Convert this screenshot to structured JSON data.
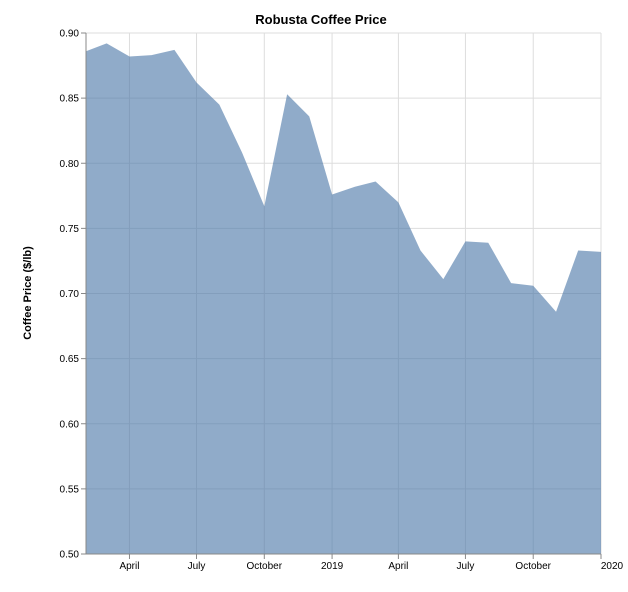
{
  "chart_data": {
    "type": "area",
    "title": "Robusta Coffee Price",
    "xlabel": "",
    "ylabel": "Coffee Price ($/lb)",
    "x": [
      "2018-02-01",
      "2018-03-01",
      "2018-04-01",
      "2018-05-01",
      "2018-06-01",
      "2018-07-01",
      "2018-08-01",
      "2018-09-01",
      "2018-10-01",
      "2018-11-01",
      "2018-12-01",
      "2019-01-01",
      "2019-02-01",
      "2019-03-01",
      "2019-04-01",
      "2019-05-01",
      "2019-06-01",
      "2019-07-01",
      "2019-08-01",
      "2019-09-01",
      "2019-10-01",
      "2019-11-01",
      "2019-12-01",
      "2020-01-01"
    ],
    "values": [
      0.886,
      0.892,
      0.882,
      0.883,
      0.887,
      0.862,
      0.845,
      0.808,
      0.767,
      0.853,
      0.836,
      0.776,
      0.782,
      0.786,
      0.77,
      0.733,
      0.711,
      0.74,
      0.739,
      0.708,
      0.706,
      0.686,
      0.733,
      0.732
    ],
    "xlim": [
      "2018-02-01",
      "2020-01-01"
    ],
    "ylim": [
      0.5,
      0.9
    ],
    "y_ticks": [
      "0.50",
      "0.55",
      "0.60",
      "0.65",
      "0.70",
      "0.75",
      "0.80",
      "0.85",
      "0.90"
    ],
    "x_ticks": [
      {
        "date": "2018-04-01",
        "label": "April"
      },
      {
        "date": "2018-07-01",
        "label": "July"
      },
      {
        "date": "2018-10-01",
        "label": "October"
      },
      {
        "date": "2019-01-01",
        "label": "2019"
      },
      {
        "date": "2019-04-01",
        "label": "April"
      },
      {
        "date": "2019-07-01",
        "label": "July"
      },
      {
        "date": "2019-10-01",
        "label": "October"
      },
      {
        "date": "2020-01-01",
        "label": "2020"
      }
    ],
    "grid": true,
    "area_color": "#4c78a8",
    "area_opacity": 0.62
  }
}
